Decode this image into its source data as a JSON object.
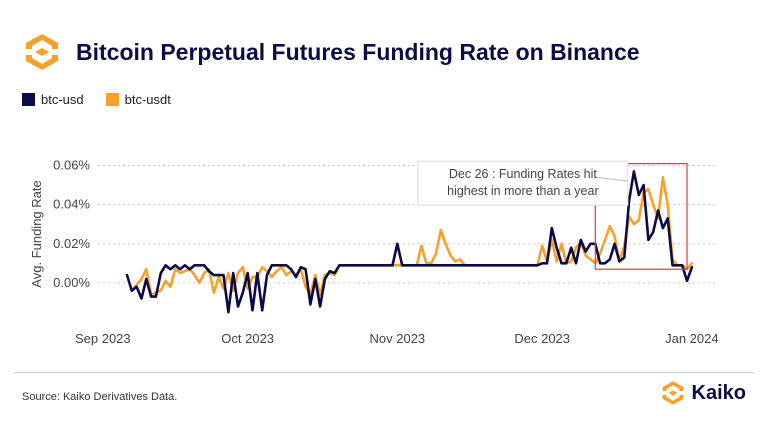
{
  "header": {
    "title": "Bitcoin Perpetual Futures Funding Rate on Binance"
  },
  "colors": {
    "btc_usd": "#0b0b4a",
    "btc_usdt": "#f5a12b",
    "highlight_box": "#e23b3b",
    "brand_orange": "#f5a12b"
  },
  "footer": {
    "source": "Source: Kaiko Derivatives Data.",
    "brand": "Kaiko"
  },
  "chart_data": {
    "type": "line",
    "title": "Bitcoin Perpetual Futures Funding Rate on Binance",
    "xlabel": "",
    "ylabel": "Avg. Funding Rate",
    "ylim": [
      -0.0002,
      0.0007
    ],
    "xlim": [
      "2023-08-31",
      "2024-01-06"
    ],
    "y_ticks": [
      0,
      0.0002,
      0.0004,
      0.0006
    ],
    "y_tick_labels": [
      "0.00%",
      "0.02%",
      "0.04%",
      "0.06%"
    ],
    "x_ticks": [
      "2023-09-01",
      "2023-10-01",
      "2023-11-01",
      "2023-12-01",
      "2024-01-01"
    ],
    "x_tick_labels": [
      "Sep 2023",
      "Oct 2023",
      "Nov 2023",
      "Dec 2023",
      "Jan 2024"
    ],
    "grid": "y-dashed",
    "legend": "top-left",
    "annotation": {
      "lines": [
        "Dec 26 : Funding Rates hit",
        "highest in more than a year"
      ],
      "box_x": [
        "2023-12-12",
        "2023-12-31"
      ],
      "box_y": [
        7e-05,
        0.00061
      ],
      "label_date": "2023-11-27",
      "label_value": 0.00051,
      "pointer_date": "2023-12-12"
    },
    "series": [
      {
        "name": "btc-usd",
        "color": "#0b0b4a",
        "points": [
          [
            "2023-09-06",
            4e-05
          ],
          [
            "2023-09-07",
            -4e-05
          ],
          [
            "2023-09-08",
            -2e-05
          ],
          [
            "2023-09-09",
            -8e-05
          ],
          [
            "2023-09-10",
            2e-05
          ],
          [
            "2023-09-11",
            -7e-05
          ],
          [
            "2023-09-12",
            -7e-05
          ],
          [
            "2023-09-13",
            5e-05
          ],
          [
            "2023-09-14",
            9e-05
          ],
          [
            "2023-09-15",
            7e-05
          ],
          [
            "2023-09-16",
            9e-05
          ],
          [
            "2023-09-17",
            7e-05
          ],
          [
            "2023-09-18",
            9e-05
          ],
          [
            "2023-09-19",
            7e-05
          ],
          [
            "2023-09-20",
            9e-05
          ],
          [
            "2023-09-21",
            9e-05
          ],
          [
            "2023-09-22",
            9e-05
          ],
          [
            "2023-09-23",
            6e-05
          ],
          [
            "2023-09-24",
            4e-05
          ],
          [
            "2023-09-25",
            4e-05
          ],
          [
            "2023-09-26",
            4e-05
          ],
          [
            "2023-09-27",
            -0.00015
          ],
          [
            "2023-09-28",
            5e-05
          ],
          [
            "2023-09-29",
            -0.00012
          ],
          [
            "2023-09-30",
            -5e-05
          ],
          [
            "2023-10-01",
            5e-05
          ],
          [
            "2023-10-02",
            -0.00014
          ],
          [
            "2023-10-03",
            5e-05
          ],
          [
            "2023-10-04",
            -0.00014
          ],
          [
            "2023-10-05",
            4e-05
          ],
          [
            "2023-10-06",
            9e-05
          ],
          [
            "2023-10-07",
            9e-05
          ],
          [
            "2023-10-08",
            9e-05
          ],
          [
            "2023-10-09",
            9e-05
          ],
          [
            "2023-10-10",
            7e-05
          ],
          [
            "2023-10-11",
            3e-05
          ],
          [
            "2023-10-12",
            8e-05
          ],
          [
            "2023-10-13",
            7e-05
          ],
          [
            "2023-10-14",
            -0.00011
          ],
          [
            "2023-10-15",
            2e-05
          ],
          [
            "2023-10-16",
            -0.00012
          ],
          [
            "2023-10-17",
            2e-05
          ],
          [
            "2023-10-18",
            6e-05
          ],
          [
            "2023-10-19",
            5e-05
          ],
          [
            "2023-10-20",
            9e-05
          ],
          [
            "2023-10-21",
            9e-05
          ],
          [
            "2023-10-31",
            9e-05
          ],
          [
            "2023-11-01",
            0.0002
          ],
          [
            "2023-11-02",
            9e-05
          ],
          [
            "2023-11-30",
            9e-05
          ],
          [
            "2023-12-01",
            0.0001
          ],
          [
            "2023-12-02",
            0.0001
          ],
          [
            "2023-12-03",
            0.00028
          ],
          [
            "2023-12-04",
            0.00018
          ],
          [
            "2023-12-05",
            0.0001
          ],
          [
            "2023-12-06",
            0.0001
          ],
          [
            "2023-12-07",
            0.00018
          ],
          [
            "2023-12-08",
            0.0001
          ],
          [
            "2023-12-09",
            0.00022
          ],
          [
            "2023-12-10",
            0.00016
          ],
          [
            "2023-12-11",
            0.0002
          ],
          [
            "2023-12-12",
            0.0002
          ],
          [
            "2023-12-13",
            0.0001
          ],
          [
            "2023-12-14",
            0.0001
          ],
          [
            "2023-12-15",
            0.00012
          ],
          [
            "2023-12-16",
            0.0002
          ],
          [
            "2023-12-17",
            0.00011
          ],
          [
            "2023-12-18",
            0.00013
          ],
          [
            "2023-12-19",
            0.00042
          ],
          [
            "2023-12-20",
            0.00057
          ],
          [
            "2023-12-21",
            0.00045
          ],
          [
            "2023-12-22",
            0.0005
          ],
          [
            "2023-12-23",
            0.00022
          ],
          [
            "2023-12-24",
            0.00026
          ],
          [
            "2023-12-25",
            0.00037
          ],
          [
            "2023-12-26",
            0.00028
          ],
          [
            "2023-12-27",
            0.00033
          ],
          [
            "2023-12-28",
            9e-05
          ],
          [
            "2023-12-29",
            9e-05
          ],
          [
            "2023-12-30",
            9e-05
          ],
          [
            "2023-12-31",
            1e-05
          ],
          [
            "2024-01-01",
            8e-05
          ]
        ]
      },
      {
        "name": "btc-usdt",
        "color": "#f5a12b",
        "points": [
          [
            "2023-09-07",
            -4e-05
          ],
          [
            "2023-09-09",
            2e-05
          ],
          [
            "2023-09-10",
            7e-05
          ],
          [
            "2023-09-11",
            -6e-05
          ],
          [
            "2023-09-13",
            -4e-05
          ],
          [
            "2023-09-14",
            1e-05
          ],
          [
            "2023-09-15",
            -2e-05
          ],
          [
            "2023-09-16",
            7e-05
          ],
          [
            "2023-09-17",
            5e-05
          ],
          [
            "2023-09-19",
            7e-05
          ],
          [
            "2023-09-20",
            4e-05
          ],
          [
            "2023-09-21",
            0.0
          ],
          [
            "2023-09-22",
            5e-05
          ],
          [
            "2023-09-23",
            7e-05
          ],
          [
            "2023-09-24",
            -5e-05
          ],
          [
            "2023-09-25",
            3e-05
          ],
          [
            "2023-09-26",
            -3e-05
          ],
          [
            "2023-09-27",
            5e-05
          ],
          [
            "2023-09-28",
            -4e-05
          ],
          [
            "2023-09-29",
            5e-05
          ],
          [
            "2023-09-30",
            8e-05
          ],
          [
            "2023-10-01",
            -3e-05
          ],
          [
            "2023-10-02",
            3e-05
          ],
          [
            "2023-10-03",
            3e-05
          ],
          [
            "2023-10-04",
            8e-05
          ],
          [
            "2023-10-05",
            6e-05
          ],
          [
            "2023-10-06",
            3e-05
          ],
          [
            "2023-10-07",
            6e-05
          ],
          [
            "2023-10-08",
            8e-05
          ],
          [
            "2023-10-09",
            4e-05
          ],
          [
            "2023-10-10",
            6e-05
          ],
          [
            "2023-10-11",
            4e-05
          ],
          [
            "2023-10-12",
            7e-05
          ],
          [
            "2023-10-13",
            -2e-05
          ],
          [
            "2023-10-14",
            -6e-05
          ],
          [
            "2023-10-15",
            4e-05
          ],
          [
            "2023-10-16",
            -6e-05
          ],
          [
            "2023-10-17",
            4e-05
          ],
          [
            "2023-10-18",
            5e-05
          ],
          [
            "2023-10-19",
            4e-05
          ],
          [
            "2023-10-20",
            9e-05
          ],
          [
            "2023-10-21",
            9e-05
          ],
          [
            "2023-11-05",
            9e-05
          ],
          [
            "2023-11-06",
            0.00019
          ],
          [
            "2023-11-07",
            0.0001
          ],
          [
            "2023-11-08",
            0.0001
          ],
          [
            "2023-11-09",
            0.00015
          ],
          [
            "2023-11-10",
            0.00027
          ],
          [
            "2023-11-11",
            0.0002
          ],
          [
            "2023-11-12",
            0.00014
          ],
          [
            "2023-11-13",
            0.00011
          ],
          [
            "2023-11-14",
            0.00012
          ],
          [
            "2023-11-15",
            9e-05
          ],
          [
            "2023-11-30",
            9e-05
          ],
          [
            "2023-12-01",
            0.00019
          ],
          [
            "2023-12-02",
            0.00011
          ],
          [
            "2023-12-03",
            0.00022
          ],
          [
            "2023-12-04",
            0.00011
          ],
          [
            "2023-12-05",
            0.0002
          ],
          [
            "2023-12-06",
            0.0001
          ],
          [
            "2023-12-07",
            0.00011
          ],
          [
            "2023-12-08",
            0.00018
          ],
          [
            "2023-12-09",
            0.00021
          ],
          [
            "2023-12-10",
            0.00014
          ],
          [
            "2023-12-11",
            0.00012
          ],
          [
            "2023-12-12",
            0.0001
          ],
          [
            "2023-12-13",
            0.00015
          ],
          [
            "2023-12-14",
            0.00022
          ],
          [
            "2023-12-15",
            0.00029
          ],
          [
            "2023-12-16",
            0.00024
          ],
          [
            "2023-12-17",
            0.00011
          ],
          [
            "2023-12-18",
            0.00019
          ],
          [
            "2023-12-19",
            0.00034
          ],
          [
            "2023-12-20",
            0.0003
          ],
          [
            "2023-12-21",
            0.00032
          ],
          [
            "2023-12-22",
            0.00046
          ],
          [
            "2023-12-23",
            0.00048
          ],
          [
            "2023-12-24",
            0.0004
          ],
          [
            "2023-12-25",
            0.00033
          ],
          [
            "2023-12-26",
            0.00054
          ],
          [
            "2023-12-27",
            0.0004
          ],
          [
            "2023-12-28",
            0.00012
          ],
          [
            "2023-12-29",
            9e-05
          ],
          [
            "2023-12-30",
            9e-05
          ],
          [
            "2023-12-31",
            7e-05
          ],
          [
            "2024-01-01",
            0.0001
          ]
        ]
      }
    ]
  }
}
